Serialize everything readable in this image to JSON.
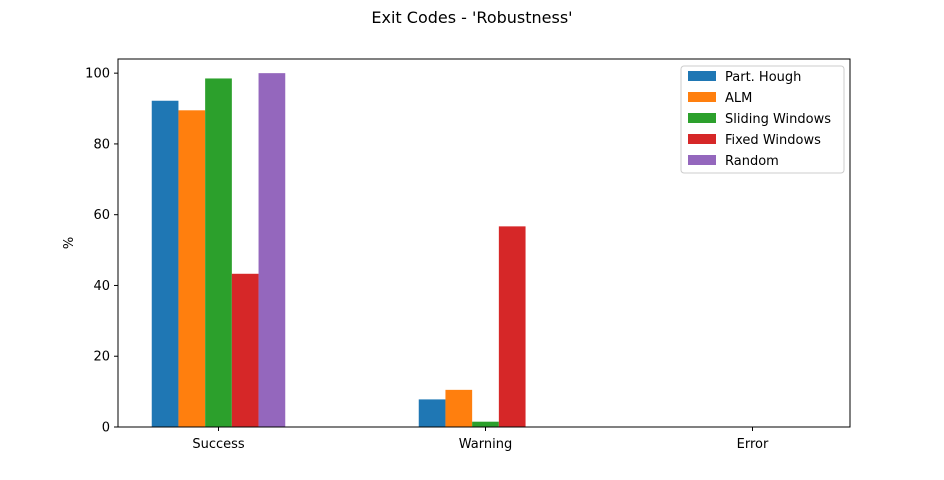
{
  "chart_data": {
    "type": "bar",
    "title": "Exit Codes - 'Robustness'",
    "xlabel": "",
    "ylabel": "%",
    "ylim": [
      0,
      104
    ],
    "yticks": [
      0,
      20,
      40,
      60,
      80,
      100
    ],
    "categories": [
      "Success",
      "Warning",
      "Error"
    ],
    "series": [
      {
        "name": "Part. Hough",
        "color": "#1f77b4",
        "values": [
          92.2,
          7.8,
          0
        ]
      },
      {
        "name": "ALM",
        "color": "#ff7f0e",
        "values": [
          89.5,
          10.5,
          0
        ]
      },
      {
        "name": "Sliding Windows",
        "color": "#2ca02c",
        "values": [
          98.5,
          1.5,
          0
        ]
      },
      {
        "name": "Fixed Windows",
        "color": "#d62728",
        "values": [
          43.3,
          56.7,
          0
        ]
      },
      {
        "name": "Random",
        "color": "#9467bd",
        "values": [
          100,
          0,
          0
        ]
      }
    ],
    "grid": false,
    "legend_position": "top-right"
  }
}
